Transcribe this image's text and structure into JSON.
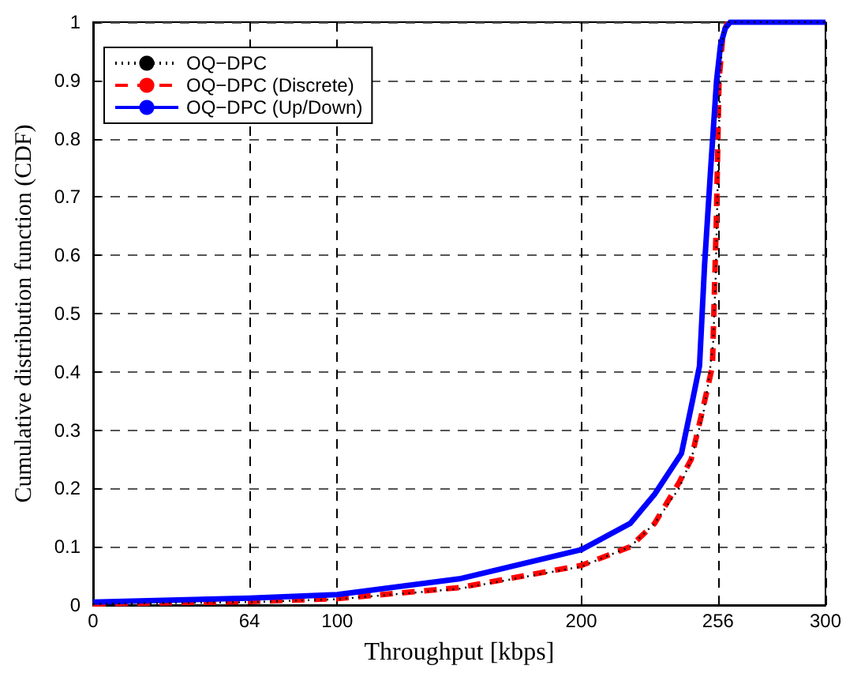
{
  "chart_data": {
    "type": "line",
    "xlabel": "Throughput [kbps]",
    "ylabel": "Cumulative distribution function (CDF)",
    "xlim": [
      0,
      300
    ],
    "xticks": [
      0,
      64,
      100,
      200,
      256,
      300
    ],
    "ylim": [
      0,
      1
    ],
    "yticks": [
      0,
      0.1,
      0.2,
      0.3,
      0.4,
      0.5,
      0.6,
      0.7,
      0.8,
      0.9,
      1
    ],
    "grid": true,
    "legend": "top left",
    "marker": "none",
    "series": [
      {
        "name": "OQ−DPC",
        "color": "#000000",
        "line_style": "dotted",
        "x": [
          0,
          64,
          100,
          150,
          200,
          220,
          230,
          240,
          245,
          250,
          252,
          254,
          255,
          256,
          257,
          258,
          260,
          280,
          300
        ],
        "values": [
          0.002,
          0.005,
          0.01,
          0.028,
          0.066,
          0.1,
          0.14,
          0.2,
          0.25,
          0.33,
          0.38,
          0.45,
          0.56,
          0.75,
          0.92,
          0.98,
          1,
          1,
          1
        ]
      },
      {
        "name": "OQ−DPC (Discrete)",
        "color": "#ff0000",
        "line_style": "dashed",
        "x": [
          0,
          64,
          100,
          150,
          200,
          220,
          230,
          240,
          245,
          250.5,
          253.7,
          255.3,
          256.4,
          258,
          260
        ],
        "values": [
          0.002,
          0.006,
          0.011,
          0.03,
          0.068,
          0.1,
          0.14,
          0.21,
          0.25,
          0.35,
          0.41,
          0.66,
          0.9,
          0.98,
          1
        ]
      },
      {
        "name": "OQ−DPC (Up/Down)",
        "color": "#0000ff",
        "line_style": "solid",
        "x": [
          0,
          64,
          100,
          150,
          200,
          220,
          230,
          241,
          245.5,
          248.4,
          250.5,
          253,
          255.4,
          257,
          259,
          261,
          280,
          300
        ],
        "values": [
          0.005,
          0.012,
          0.018,
          0.045,
          0.095,
          0.14,
          0.19,
          0.26,
          0.35,
          0.41,
          0.585,
          0.75,
          0.9,
          0.96,
          0.99,
          1,
          1,
          1
        ]
      }
    ]
  }
}
